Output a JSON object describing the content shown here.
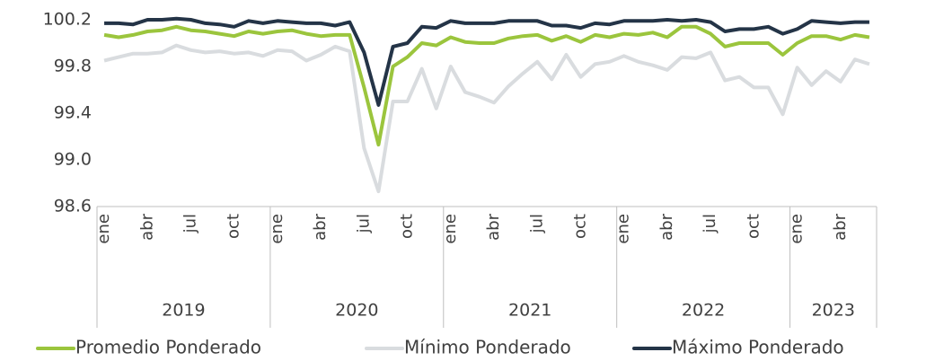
{
  "chart_data": {
    "type": "line",
    "categories": [
      "ene",
      null,
      null,
      "abr",
      null,
      null,
      "jul",
      null,
      null,
      "oct",
      null,
      null,
      "ene",
      null,
      null,
      "abr",
      null,
      null,
      "jul",
      null,
      null,
      "oct",
      null,
      null,
      "ene",
      null,
      null,
      "abr",
      null,
      null,
      "jul",
      null,
      null,
      "oct",
      null,
      null,
      "ene",
      null,
      null,
      "abr",
      null,
      null,
      "jul",
      null,
      null,
      "oct",
      null,
      null,
      "ene",
      null,
      null,
      "abr",
      null,
      null
    ],
    "years": [
      "2019",
      "2020",
      "2021",
      "2022",
      "2023"
    ],
    "ylim": [
      98.6,
      100.2
    ],
    "yticks": [
      98.6,
      {
        "value": 99,
        "label": "99.0"
      },
      99.4,
      99.8,
      100.2
    ],
    "grid": false,
    "legend": "bottom",
    "series": [
      {
        "name": "Promedio Ponderado",
        "color": "#9bc53d",
        "values": [
          100.07,
          100.05,
          100.07,
          100.1,
          100.11,
          100.14,
          100.11,
          100.1,
          100.08,
          100.06,
          100.1,
          100.08,
          100.1,
          100.11,
          100.08,
          100.06,
          100.07,
          100.07,
          99.62,
          99.13,
          99.8,
          99.88,
          100.0,
          99.98,
          100.05,
          100.01,
          100.0,
          100.0,
          100.04,
          100.06,
          100.07,
          100.02,
          100.06,
          100.01,
          100.07,
          100.05,
          100.08,
          100.07,
          100.09,
          100.05,
          100.14,
          100.14,
          100.08,
          99.97,
          100.0,
          100.0,
          100.0,
          99.9,
          100.0,
          100.06,
          100.06,
          100.03,
          100.07,
          100.05
        ]
      },
      {
        "name": "Mínimo Ponderado",
        "color": "#d9dcdf",
        "values": [
          99.85,
          99.88,
          99.91,
          99.91,
          99.92,
          99.98,
          99.94,
          99.92,
          99.93,
          99.91,
          99.92,
          99.89,
          99.94,
          99.93,
          99.85,
          99.9,
          99.97,
          99.93,
          99.1,
          98.73,
          99.5,
          99.5,
          99.78,
          99.44,
          99.8,
          99.58,
          99.54,
          99.49,
          99.63,
          99.74,
          99.84,
          99.69,
          99.9,
          99.71,
          99.82,
          99.84,
          99.89,
          99.84,
          99.81,
          99.77,
          99.88,
          99.87,
          99.92,
          99.68,
          99.71,
          99.62,
          99.62,
          99.39,
          99.79,
          99.64,
          99.76,
          99.67,
          99.86,
          99.82
        ]
      },
      {
        "name": "Máximo Ponderado",
        "color": "#243447",
        "values": [
          100.17,
          100.17,
          100.16,
          100.2,
          100.2,
          100.21,
          100.2,
          100.17,
          100.16,
          100.14,
          100.19,
          100.17,
          100.19,
          100.18,
          100.17,
          100.17,
          100.15,
          100.18,
          99.92,
          99.47,
          99.97,
          100.0,
          100.14,
          100.13,
          100.19,
          100.17,
          100.17,
          100.17,
          100.19,
          100.19,
          100.19,
          100.15,
          100.15,
          100.13,
          100.17,
          100.16,
          100.19,
          100.19,
          100.19,
          100.2,
          100.19,
          100.2,
          100.18,
          100.1,
          100.12,
          100.12,
          100.14,
          100.08,
          100.12,
          100.19,
          100.18,
          100.17,
          100.18,
          100.18
        ]
      }
    ]
  }
}
